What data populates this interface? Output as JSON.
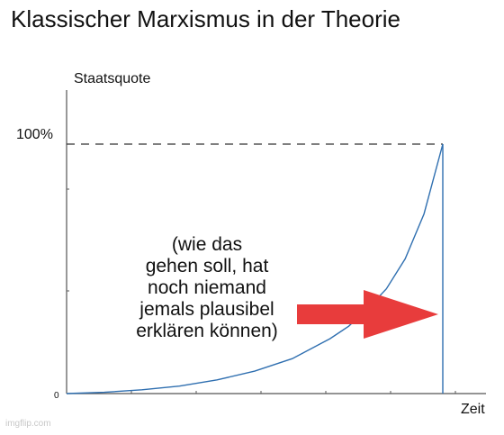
{
  "chart_data": {
    "type": "line",
    "title": "Klassischer Marxismus in der Theorie",
    "xlabel": "Zeit",
    "ylabel": "Staatsquote",
    "ylim": [
      0,
      100
    ],
    "y_tick_labels": {
      "top": "100%",
      "origin": "0"
    },
    "series": [
      {
        "x": [
          0,
          0.1,
          0.2,
          0.3,
          0.4,
          0.5,
          0.6,
          0.7,
          0.75,
          0.8,
          0.85,
          0.9,
          0.95,
          1.0
        ],
        "values": [
          0,
          0.5,
          1.5,
          3,
          5.5,
          9,
          14,
          22,
          27,
          34,
          42,
          54,
          72,
          100
        ]
      }
    ],
    "reference_line": {
      "y": 100,
      "style": "dashed"
    },
    "drop_line": {
      "x": 1.0,
      "style": "solid",
      "note": "vertical drop"
    },
    "annotation": "(wie das\ngehen soll, hat\nnoch niemand\njemals plausibel\nerklären können)",
    "colors": {
      "curve": "#2f6fb0",
      "arrow": "#e83c3c",
      "axis": "#555555",
      "dash": "#333333"
    }
  },
  "watermark": "imgflip.com"
}
